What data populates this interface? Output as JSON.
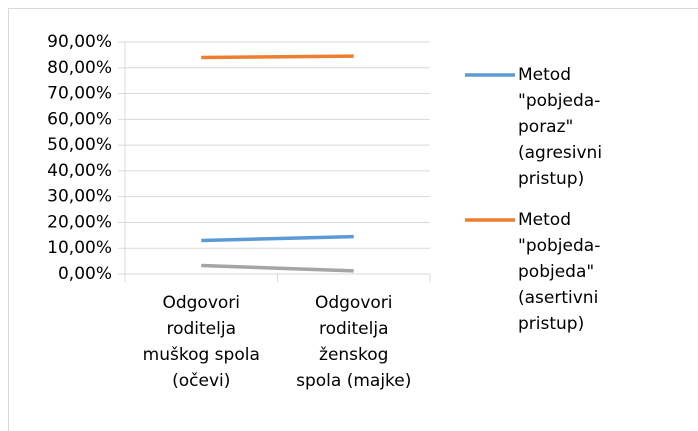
{
  "chart_data": {
    "type": "line",
    "categories": [
      "Odgovori roditelja muškog spola (očevi)",
      "Odgovori roditelja ženskog spola (majke)"
    ],
    "series": [
      {
        "name": "Metod \"pobjeda-poraz\" (agresivni pristup)",
        "color": "#5b9bd5",
        "values": [
          13.0,
          14.5
        ]
      },
      {
        "name": "Metod \"pobjeda-pobjeda\" (asertivni pristup)",
        "color": "#ed7d31",
        "values": [
          84.0,
          84.5
        ]
      },
      {
        "color": "#a5a5a5",
        "values": [
          3.3,
          1.2
        ]
      }
    ],
    "ylim": [
      0,
      90
    ],
    "yticks": [
      {
        "value": 0,
        "label": "0,00%"
      },
      {
        "value": 10,
        "label": "10,00%"
      },
      {
        "value": 20,
        "label": "20,00%"
      },
      {
        "value": 30,
        "label": "30,00%"
      },
      {
        "value": 40,
        "label": "40,00%"
      },
      {
        "value": 50,
        "label": "50,00%"
      },
      {
        "value": 60,
        "label": "60,00%"
      },
      {
        "value": 70,
        "label": "70,00%"
      },
      {
        "value": 80,
        "label": "80,00%"
      },
      {
        "value": 90,
        "label": "90,00%"
      }
    ],
    "grid": true,
    "legend": "right"
  }
}
